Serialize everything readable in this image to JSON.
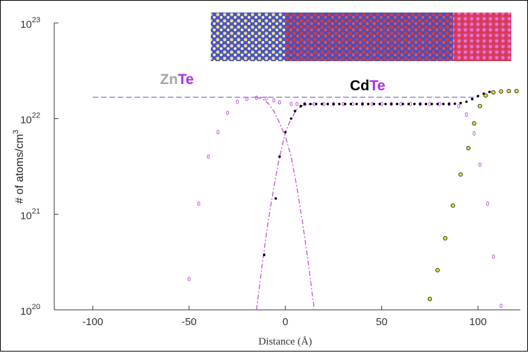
{
  "chart_data": {
    "type": "line",
    "xlabel": "Distance (Å)",
    "ylabel": [
      "# of atoms/cm",
      "3"
    ],
    "annotations": [
      {
        "parts": [
          {
            "text": "Zn",
            "color": "#a6a6a6"
          },
          {
            "text": "Te",
            "color": "#b030e0"
          }
        ]
      },
      {
        "parts": [
          {
            "text": "Cd",
            "color": "#000000"
          },
          {
            "text": "Te",
            "color": "#b030e0"
          }
        ]
      }
    ],
    "log_y": true,
    "xlim": [
      -120,
      122
    ],
    "ylim": [
      1e+20,
      1e+23
    ],
    "xticks": [
      -100,
      -50,
      0,
      50,
      100
    ],
    "yticks": [
      {
        "value": 1e+20,
        "label": [
          "10",
          "20"
        ]
      },
      {
        "value": 1e+21,
        "label": [
          "10",
          "21"
        ]
      },
      {
        "value": 1e+22,
        "label": [
          "10",
          "22"
        ]
      },
      {
        "value": 1e+23,
        "label": [
          "10",
          "23"
        ]
      }
    ],
    "series": [
      {
        "style": "dashed",
        "color": "#7a6fc0",
        "x": [
          -100,
          100
        ],
        "values": [
          1.67e+22,
          1.67e+22
        ]
      },
      {
        "style": "dashdot",
        "color": "#c040c0",
        "x": [
          -15,
          -12,
          -9,
          -6,
          -3,
          0,
          3,
          6,
          9,
          12,
          15
        ],
        "values": [
          1e+20,
          3e+20,
          8.3e+20,
          1.9e+21,
          4e+21,
          7.2e+21,
          1e+22,
          1.25e+22,
          1.37e+22,
          1.41e+22,
          1.42e+22
        ]
      },
      {
        "style": "dashdot",
        "color": "#c040c0",
        "x": [
          -15,
          -12,
          -9,
          -6,
          -3,
          0,
          3,
          6,
          9,
          12,
          15
        ],
        "values": [
          1.67e+22,
          1.6e+22,
          1.45e+22,
          1.2e+22,
          9e+21,
          6.5e+21,
          4e+21,
          1.9e+21,
          8e+20,
          3e+20,
          1e+20
        ]
      },
      {
        "style": "open",
        "color": "#c050e0",
        "x": [
          -50,
          -45,
          -40,
          -35,
          -30,
          -25,
          -20,
          -15,
          -10,
          -6,
          -3,
          3,
          6,
          10,
          15,
          20,
          25,
          30,
          35,
          40,
          45,
          50,
          55,
          60,
          65,
          70,
          75,
          80,
          85,
          90,
          94,
          98,
          101,
          105,
          108,
          112
        ],
        "values": [
          2.1e+20,
          1.29e+21,
          4e+21,
          7.2e+21,
          1.15e+22,
          1.5e+22,
          1.6e+22,
          1.65e+22,
          1.62e+22,
          1.55e+22,
          1.48e+22,
          1.42e+22,
          1.42e+22,
          1.42e+22,
          1.42e+22,
          1.42e+22,
          1.42e+22,
          1.42e+22,
          1.42e+22,
          1.42e+22,
          1.42e+22,
          1.42e+22,
          1.42e+22,
          1.42e+22,
          1.42e+22,
          1.42e+22,
          1.42e+22,
          1.42e+22,
          1.42e+22,
          1.35e+22,
          1.1e+22,
          7e+21,
          3.3e+21,
          1.29e+21,
          3.6e+20,
          1.1e+20
        ]
      },
      {
        "style": "dot",
        "color": "#000000",
        "x": [
          -11,
          -5,
          -3,
          0,
          3,
          5,
          8,
          10,
          13,
          16,
          19,
          22,
          25,
          28,
          31,
          34,
          37,
          40,
          43,
          46,
          49,
          52,
          55,
          58,
          61,
          64,
          67,
          70,
          73,
          76,
          79,
          82,
          85,
          88,
          91,
          94,
          97,
          100,
          103,
          106
        ],
        "values": [
          3.76e+20,
          1.46e+21,
          4e+21,
          7.2e+21,
          1e+22,
          1.2e+22,
          1.35e+22,
          1.42e+22,
          1.42e+22,
          1.42e+22,
          1.42e+22,
          1.42e+22,
          1.42e+22,
          1.42e+22,
          1.42e+22,
          1.42e+22,
          1.42e+22,
          1.42e+22,
          1.42e+22,
          1.42e+22,
          1.42e+22,
          1.42e+22,
          1.42e+22,
          1.42e+22,
          1.42e+22,
          1.42e+22,
          1.42e+22,
          1.42e+22,
          1.42e+22,
          1.42e+22,
          1.42e+22,
          1.42e+22,
          1.42e+22,
          1.43e+22,
          1.45e+22,
          1.5e+22,
          1.6e+22,
          1.72e+22,
          1.82e+22,
          1.9e+22
        ]
      },
      {
        "style": "filled",
        "color": "#e8e820",
        "x": [
          75,
          79,
          83,
          87,
          91,
          95,
          98,
          101,
          104,
          108,
          112,
          116,
          120
        ],
        "values": [
          1.3e+20,
          2.6e+20,
          5.6e+20,
          1.23e+21,
          2.6e+21,
          4.9e+21,
          8.9e+21,
          1.35e+22,
          1.74e+22,
          1.88e+22,
          1.92e+22,
          1.94e+22,
          1.94e+22
        ]
      }
    ]
  }
}
